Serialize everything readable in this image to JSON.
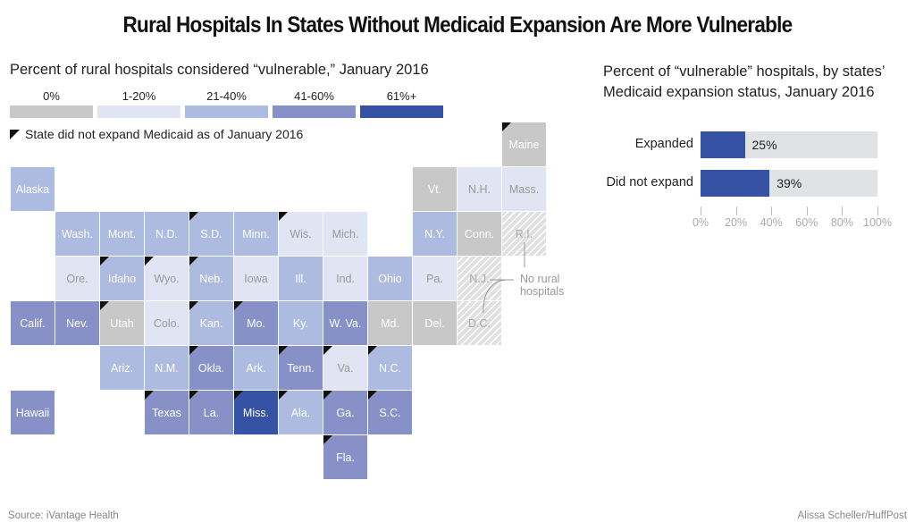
{
  "title": "Rural Hospitals In States Without Medicaid Expansion Are More Vulnerable",
  "footer": {
    "source": "Source: iVantage Health",
    "credit": "Alissa Scheller/HuffPost"
  },
  "chart_data": [
    {
      "type": "heatmap",
      "title": "Percent of rural hospitals considered “vulnerable,” January 2016",
      "legend": {
        "bins": [
          {
            "label": "0%",
            "color": "#c9c8c8",
            "text_color": "#ffffff"
          },
          {
            "label": "1-20%",
            "color": "#e1e5f3",
            "text_color": "#999999"
          },
          {
            "label": "21-40%",
            "color": "#aebbe0",
            "text_color": "#ffffff"
          },
          {
            "label": "41-60%",
            "color": "#8791c8",
            "text_color": "#ffffff"
          },
          {
            "label": "61%+",
            "color": "#3552a5",
            "text_color": "#ffffff"
          }
        ],
        "no_expansion_marker": "State did not expand Medicaid as of January 2016",
        "no_data_note": "No rural hospitals"
      },
      "states": [
        {
          "name": "Maine",
          "row": 0,
          "col": 11,
          "bin": 0,
          "not_expanded": true
        },
        {
          "name": "Alaska",
          "row": 1,
          "col": 0,
          "bin": 2,
          "not_expanded": false
        },
        {
          "name": "Vt.",
          "row": 1,
          "col": 9,
          "bin": 0,
          "not_expanded": false
        },
        {
          "name": "N.H.",
          "row": 1,
          "col": 10,
          "bin": 1,
          "not_expanded": false
        },
        {
          "name": "Mass.",
          "row": 1,
          "col": 11,
          "bin": 1,
          "not_expanded": false
        },
        {
          "name": "Wash.",
          "row": 2,
          "col": 1,
          "bin": 2,
          "not_expanded": false
        },
        {
          "name": "Mont.",
          "row": 2,
          "col": 2,
          "bin": 2,
          "not_expanded": false
        },
        {
          "name": "N.D.",
          "row": 2,
          "col": 3,
          "bin": 2,
          "not_expanded": false
        },
        {
          "name": "S.D.",
          "row": 2,
          "col": 4,
          "bin": 2,
          "not_expanded": true
        },
        {
          "name": "Minn.",
          "row": 2,
          "col": 5,
          "bin": 2,
          "not_expanded": false
        },
        {
          "name": "Wis.",
          "row": 2,
          "col": 6,
          "bin": 1,
          "not_expanded": true
        },
        {
          "name": "Mich.",
          "row": 2,
          "col": 7,
          "bin": 1,
          "not_expanded": false
        },
        {
          "name": "N.Y.",
          "row": 2,
          "col": 9,
          "bin": 2,
          "not_expanded": false
        },
        {
          "name": "Conn.",
          "row": 2,
          "col": 10,
          "bin": 0,
          "not_expanded": false
        },
        {
          "name": "R.I.",
          "row": 2,
          "col": 11,
          "bin": null,
          "not_expanded": false
        },
        {
          "name": "Ore.",
          "row": 3,
          "col": 1,
          "bin": 1,
          "not_expanded": false
        },
        {
          "name": "Idaho",
          "row": 3,
          "col": 2,
          "bin": 2,
          "not_expanded": true
        },
        {
          "name": "Wyo.",
          "row": 3,
          "col": 3,
          "bin": 1,
          "not_expanded": true
        },
        {
          "name": "Neb.",
          "row": 3,
          "col": 4,
          "bin": 2,
          "not_expanded": true
        },
        {
          "name": "Iowa",
          "row": 3,
          "col": 5,
          "bin": 1,
          "not_expanded": false
        },
        {
          "name": "Ill.",
          "row": 3,
          "col": 6,
          "bin": 2,
          "not_expanded": false
        },
        {
          "name": "Ind.",
          "row": 3,
          "col": 7,
          "bin": 1,
          "not_expanded": false
        },
        {
          "name": "Ohio",
          "row": 3,
          "col": 8,
          "bin": 2,
          "not_expanded": false
        },
        {
          "name": "Pa.",
          "row": 3,
          "col": 9,
          "bin": 1,
          "not_expanded": false
        },
        {
          "name": "N.J.",
          "row": 3,
          "col": 10,
          "bin": null,
          "not_expanded": false
        },
        {
          "name": "Calif.",
          "row": 4,
          "col": 0,
          "bin": 3,
          "not_expanded": false
        },
        {
          "name": "Nev.",
          "row": 4,
          "col": 1,
          "bin": 3,
          "not_expanded": false
        },
        {
          "name": "Utah",
          "row": 4,
          "col": 2,
          "bin": 0,
          "not_expanded": true
        },
        {
          "name": "Colo.",
          "row": 4,
          "col": 3,
          "bin": 1,
          "not_expanded": false
        },
        {
          "name": "Kan.",
          "row": 4,
          "col": 4,
          "bin": 2,
          "not_expanded": true
        },
        {
          "name": "Mo.",
          "row": 4,
          "col": 5,
          "bin": 3,
          "not_expanded": true
        },
        {
          "name": "Ky.",
          "row": 4,
          "col": 6,
          "bin": 2,
          "not_expanded": false
        },
        {
          "name": "W. Va.",
          "row": 4,
          "col": 7,
          "bin": 3,
          "not_expanded": false
        },
        {
          "name": "Md.",
          "row": 4,
          "col": 8,
          "bin": 0,
          "not_expanded": false
        },
        {
          "name": "Del.",
          "row": 4,
          "col": 9,
          "bin": 0,
          "not_expanded": false
        },
        {
          "name": "D.C.",
          "row": 4,
          "col": 10,
          "bin": null,
          "not_expanded": false
        },
        {
          "name": "Ariz.",
          "row": 5,
          "col": 2,
          "bin": 2,
          "not_expanded": false
        },
        {
          "name": "N.M.",
          "row": 5,
          "col": 3,
          "bin": 2,
          "not_expanded": false
        },
        {
          "name": "Okla.",
          "row": 5,
          "col": 4,
          "bin": 3,
          "not_expanded": true
        },
        {
          "name": "Ark.",
          "row": 5,
          "col": 5,
          "bin": 2,
          "not_expanded": false
        },
        {
          "name": "Tenn.",
          "row": 5,
          "col": 6,
          "bin": 3,
          "not_expanded": true
        },
        {
          "name": "Va.",
          "row": 5,
          "col": 7,
          "bin": 1,
          "not_expanded": true
        },
        {
          "name": "N.C.",
          "row": 5,
          "col": 8,
          "bin": 2,
          "not_expanded": true
        },
        {
          "name": "Hawaii",
          "row": 6,
          "col": 0,
          "bin": 3,
          "not_expanded": false
        },
        {
          "name": "Texas",
          "row": 6,
          "col": 3,
          "bin": 3,
          "not_expanded": true
        },
        {
          "name": "La.",
          "row": 6,
          "col": 4,
          "bin": 3,
          "not_expanded": true
        },
        {
          "name": "Miss.",
          "row": 6,
          "col": 5,
          "bin": 4,
          "not_expanded": true
        },
        {
          "name": "Ala.",
          "row": 6,
          "col": 6,
          "bin": 2,
          "not_expanded": true
        },
        {
          "name": "Ga.",
          "row": 6,
          "col": 7,
          "bin": 3,
          "not_expanded": true
        },
        {
          "name": "S.C.",
          "row": 6,
          "col": 8,
          "bin": 3,
          "not_expanded": true
        },
        {
          "name": "Fla.",
          "row": 7,
          "col": 7,
          "bin": 3,
          "not_expanded": true
        }
      ]
    },
    {
      "type": "bar",
      "title": "Percent of “vulnerable” hospitals, by states’ Medicaid expansion status, January 2016",
      "categories": [
        "Expanded",
        "Did not expand"
      ],
      "values": [
        25,
        39
      ],
      "value_labels": [
        "25%",
        "39%"
      ],
      "xlim": [
        0,
        100
      ],
      "xticks": [
        0,
        20,
        40,
        60,
        80,
        100
      ],
      "xtick_labels": [
        "0%",
        "20%",
        "40%",
        "60%",
        "80%",
        "100%"
      ],
      "bar_color": "#3552a5",
      "track_color": "#e1e2e4",
      "orientation": "horizontal"
    }
  ]
}
